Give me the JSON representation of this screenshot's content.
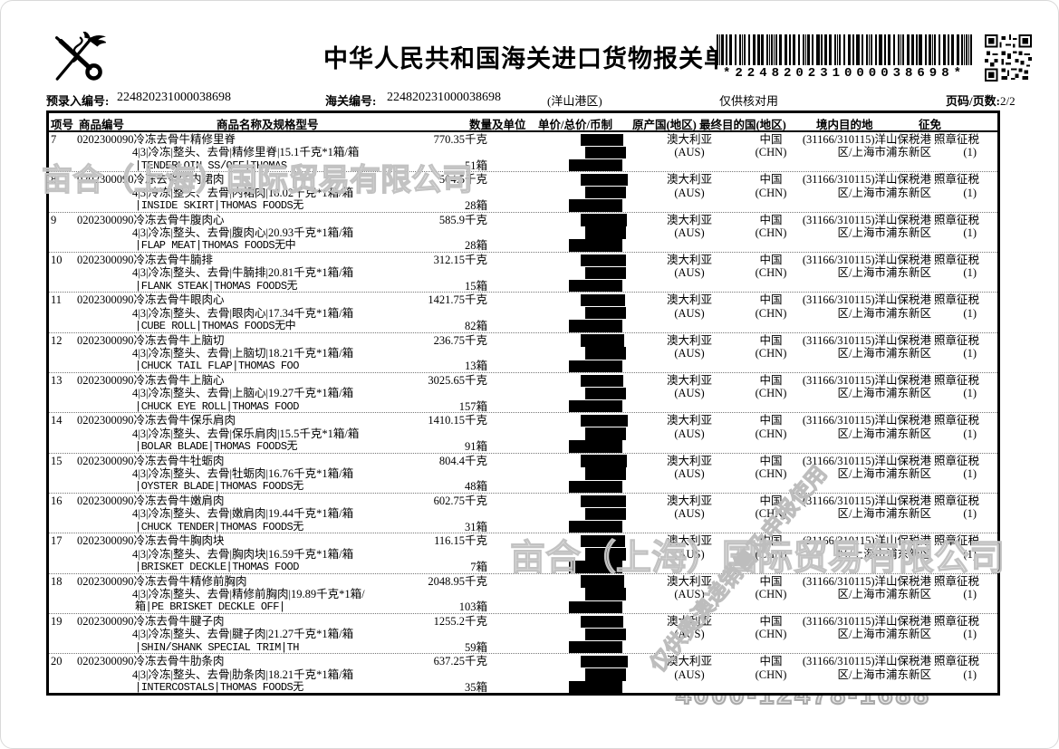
{
  "header": {
    "title": "中华人民共和国海关进口货物报关单",
    "pre_entry_label": "预录入编号:",
    "pre_entry_no": "224820231000038698",
    "customs_no_label": "海关编号:",
    "customs_no": "224820231000038698",
    "port": "(洋山港区)",
    "check_note": "仅供核对用",
    "page_label": "页码/页数:",
    "page_value": "2/2",
    "barcode_text": "*224820231000038698*"
  },
  "icons": {
    "emblem": "china-customs-key-caduceus-emblem",
    "barcode": "code39-barcode",
    "qr": "qr-code"
  },
  "colors": {
    "ink": "#000000",
    "redaction": "#000000",
    "watermark": "#c2c2c2"
  },
  "table": {
    "headers": [
      "项号",
      "商品编号",
      "商品名称及规格型号",
      "数量及单位",
      "单价/总价/币制",
      "原产国(地区)",
      "最终目的国(地区)",
      "境内目的地",
      "征免"
    ],
    "common": {
      "code": "0202300090",
      "origin": "澳大利亚",
      "origin_code": "(AUS)",
      "dest": "中国",
      "dest_code": "(CHN)",
      "domestic1": "(31166/310115)洋山保税港",
      "domestic2": "区/上海市浦东新区",
      "levy1": "照章征税",
      "levy2": "(1)"
    },
    "rows": [
      {
        "no": "7",
        "name": "冷冻去骨牛精修里脊",
        "spec": "4|3|冷冻|整头、去骨|精修里脊|15.1千克*1箱/箱",
        "eng": "|TENDERLOIN SS/OFF|THOMAS",
        "qty": "770.35千克",
        "boxes": "51箱"
      },
      {
        "no": "8",
        "name": "冷冻去骨牛内裙肉",
        "spec": "4|3|冷冻|整头、去骨|内裙肉|18.02千克*1箱/箱",
        "eng": "|INSIDE SKIRT|THOMAS FOODS无",
        "qty": "504.5千克",
        "boxes": "28箱"
      },
      {
        "no": "9",
        "name": "冷冻去骨牛腹肉心",
        "spec": "4|3|冷冻|整头、去骨|腹肉心|20.93千克*1箱/箱",
        "eng": "|FLAP MEAT|THOMAS FOODS无中",
        "qty": "585.9千克",
        "boxes": "28箱"
      },
      {
        "no": "10",
        "name": "冷冻去骨牛腩排",
        "spec": "4|3|冷冻|整头、去骨|牛腩排|20.81千克*1箱/箱",
        "eng": "|FLANK STEAK|THOMAS FOODS无",
        "qty": "312.15千克",
        "boxes": "15箱"
      },
      {
        "no": "11",
        "name": "冷冻去骨牛眼肉心",
        "spec": "4|3|冷冻|整头、去骨|眼肉心|17.34千克*1箱/箱",
        "eng": "|CUBE ROLL|THOMAS FOODS无中",
        "qty": "1421.75千克",
        "boxes": "82箱"
      },
      {
        "no": "12",
        "name": "冷冻去骨牛上脑切",
        "spec": "4|3|冷冻|整头、去骨|上脑切|18.21千克*1箱/箱",
        "eng": "|CHUCK TAIL FLAP|THOMAS FOO",
        "qty": "236.75千克",
        "boxes": "13箱"
      },
      {
        "no": "13",
        "name": "冷冻去骨牛上脑心",
        "spec": "4|3|冷冻|整头、去骨|上脑心|19.27千克*1箱/箱",
        "eng": "|CHUCK EYE ROLL|THOMAS FOOD",
        "qty": "3025.65千克",
        "boxes": "157箱"
      },
      {
        "no": "14",
        "name": "冷冻去骨牛保乐肩肉",
        "spec": "4|3|冷冻|整头、去骨|保乐肩肉|15.5千克*1箱/箱",
        "eng": "|BOLAR BLADE|THOMAS FOODS无",
        "qty": "1410.15千克",
        "boxes": "91箱"
      },
      {
        "no": "15",
        "name": "冷冻去骨牛牡蛎肉",
        "spec": "4|3|冷冻|整头、去骨|牡蛎肉|16.76千克*1箱/箱",
        "eng": "|OYSTER BLADE|THOMAS FOODS无",
        "qty": "804.4千克",
        "boxes": "48箱"
      },
      {
        "no": "16",
        "name": "冷冻去骨牛嫩肩肉",
        "spec": "4|3|冷冻|整头、去骨|嫩肩肉|19.44千克*1箱/箱",
        "eng": "|CHUCK TENDER|THOMAS FOODS无",
        "qty": "602.75千克",
        "boxes": "31箱"
      },
      {
        "no": "17",
        "name": "冷冻去骨牛胸肉块",
        "spec": "4|3|冷冻|整头、去骨|胸肉块|16.59千克*1箱/箱",
        "eng": "|BRISKET DECKLE|THOMAS FOOD",
        "qty": "116.15千克",
        "boxes": "7箱"
      },
      {
        "no": "18",
        "name": "冷冻去骨牛精修前胸肉",
        "spec": "4|3|冷冻|整头、去骨|精修前胸肉|19.89千克*1箱/",
        "eng": "箱|PE BRISKET DECKLE OFF|",
        "qty": "2048.95千克",
        "boxes": "103箱"
      },
      {
        "no": "19",
        "name": "冷冻去骨牛腱子肉",
        "spec": "4|3|冷冻|整头、去骨|腱子肉|21.27千克*1箱/箱",
        "eng": "|SHIN/SHANK SPECIAL TRIM|TH",
        "qty": "1255.2千克",
        "boxes": "59箱"
      },
      {
        "no": "20",
        "name": "冷冻去骨牛肋条肉",
        "spec": "4|3|冷冻|整头、去骨|肋条肉|18.21千克*1箱/箱",
        "eng": "|INTERCOSTALS|THOMAS FOODS无",
        "qty": "637.25千克",
        "boxes": "35箱"
      }
    ]
  },
  "watermarks": {
    "company": "亩合（上海）国际贸易有限公司",
    "diagonal": "仅供奥澳递销售及申报使用",
    "phone": "4000-12478-1688"
  }
}
